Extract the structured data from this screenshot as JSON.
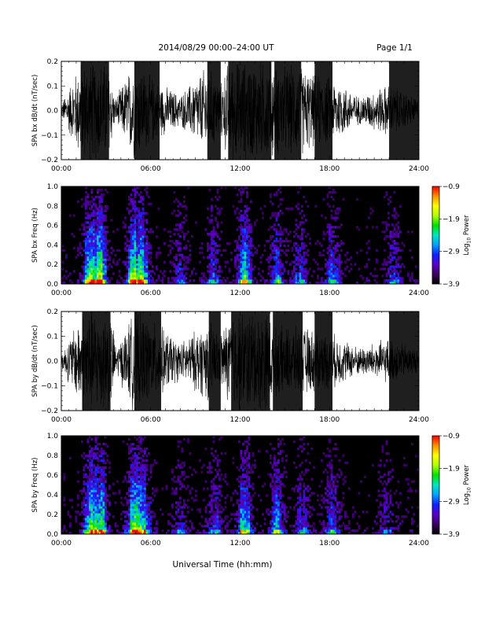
{
  "header": {
    "date_range": "2014/08/29  00:00–24:00 UT",
    "page": "Page 1/1"
  },
  "x_axis_title": "Universal Time (hh:mm)",
  "x_tick_labels": [
    "00:00",
    "06:00",
    "12:00",
    "18:00",
    "24:00"
  ],
  "chart_data": [
    {
      "type": "line",
      "panel": "bx-waveform",
      "ylabel": "SPA bx dB/dt (nT/sec)",
      "xlim": [
        0,
        24
      ],
      "ylim": [
        -0.2,
        0.2
      ],
      "yticks": [
        "0.2",
        "0.1",
        "0.0",
        "−0.1",
        "−0.2"
      ],
      "x_unit": "hours UT",
      "burst_windows": [
        [
          1.3,
          3.2
        ],
        [
          4.9,
          6.6
        ],
        [
          9.8,
          10.7
        ],
        [
          11.2,
          14.1
        ],
        [
          14.3,
          16.1
        ],
        [
          17.0,
          18.2
        ],
        [
          22.0,
          24.0
        ]
      ],
      "envelope": [
        [
          0,
          0.03
        ],
        [
          1.3,
          0.22
        ],
        [
          3.2,
          0.22
        ],
        [
          3.6,
          0.05
        ],
        [
          4.9,
          0.22
        ],
        [
          6.6,
          0.12
        ],
        [
          8.0,
          0.07
        ],
        [
          9.8,
          0.2
        ],
        [
          10.7,
          0.12
        ],
        [
          11.2,
          0.22
        ],
        [
          14.1,
          0.22
        ],
        [
          14.3,
          0.2
        ],
        [
          16.1,
          0.2
        ],
        [
          17.0,
          0.16
        ],
        [
          18.2,
          0.15
        ],
        [
          20.0,
          0.06
        ],
        [
          22.0,
          0.12
        ],
        [
          24.0,
          0.05
        ]
      ]
    },
    {
      "type": "heatmap",
      "panel": "bx-spectrogram",
      "ylabel": "SPA bx Freq (Hz)",
      "xlim": [
        0,
        24
      ],
      "ylim": [
        0,
        1.0
      ],
      "yticks": [
        "1.0",
        "0.8",
        "0.6",
        "0.4",
        "0.2",
        "0.0"
      ],
      "colorbar": {
        "label": "Log10 Power",
        "label_main": "Log",
        "label_sub": "10",
        "label_end": " Power",
        "ticks": [
          "−0.9",
          "−1.9",
          "−2.9",
          "−3.9"
        ],
        "range": [
          -3.9,
          -0.9
        ],
        "colors": [
          "#000000",
          "#3a0060",
          "#5a00c8",
          "#1020ff",
          "#00a0ff",
          "#00e8c0",
          "#00e000",
          "#b0ff00",
          "#ffff00",
          "#ff9000",
          "#ff0000"
        ]
      },
      "activity": [
        [
          2.0,
          0.95
        ],
        [
          2.6,
          0.85
        ],
        [
          4.9,
          0.9
        ],
        [
          5.5,
          0.6
        ],
        [
          8.0,
          0.3
        ],
        [
          10.2,
          0.45
        ],
        [
          12.3,
          0.7
        ],
        [
          14.5,
          0.5
        ],
        [
          16.0,
          0.35
        ],
        [
          18.2,
          0.5
        ],
        [
          22.3,
          0.35
        ]
      ]
    },
    {
      "type": "line",
      "panel": "by-waveform",
      "ylabel": "SPA by dB/dt (nT/sec)",
      "xlim": [
        0,
        24
      ],
      "ylim": [
        -0.2,
        0.2
      ],
      "yticks": [
        "0.2",
        "0.1",
        "0.0",
        "−0.1",
        "−0.2"
      ],
      "x_unit": "hours UT",
      "burst_windows": [
        [
          1.4,
          3.3
        ],
        [
          4.9,
          6.7
        ],
        [
          9.9,
          10.7
        ],
        [
          11.4,
          14.0
        ],
        [
          14.2,
          16.2
        ],
        [
          17.0,
          18.2
        ],
        [
          22.0,
          24.0
        ]
      ],
      "envelope": [
        [
          0,
          0.03
        ],
        [
          1.4,
          0.22
        ],
        [
          3.3,
          0.22
        ],
        [
          3.7,
          0.06
        ],
        [
          4.9,
          0.22
        ],
        [
          6.7,
          0.15
        ],
        [
          8.0,
          0.08
        ],
        [
          9.9,
          0.18
        ],
        [
          10.7,
          0.12
        ],
        [
          11.4,
          0.22
        ],
        [
          14.0,
          0.22
        ],
        [
          14.2,
          0.15
        ],
        [
          16.2,
          0.15
        ],
        [
          17.0,
          0.14
        ],
        [
          18.2,
          0.12
        ],
        [
          20.0,
          0.06
        ],
        [
          22.0,
          0.1
        ],
        [
          24.0,
          0.05
        ]
      ]
    },
    {
      "type": "heatmap",
      "panel": "by-spectrogram",
      "ylabel": "SPA by Freq (Hz)",
      "xlim": [
        0,
        24
      ],
      "ylim": [
        0,
        1.0
      ],
      "yticks": [
        "1.0",
        "0.8",
        "0.6",
        "0.4",
        "0.2",
        "0.0"
      ],
      "colorbar": {
        "label": "Log10 Power",
        "label_main": "Log",
        "label_sub": "10",
        "label_end": " Power",
        "ticks": [
          "−0.9",
          "−1.9",
          "−2.9",
          "−3.9"
        ],
        "range": [
          -3.9,
          -0.9
        ],
        "colors": [
          "#000000",
          "#3a0060",
          "#5a00c8",
          "#1020ff",
          "#00a0ff",
          "#00e8c0",
          "#00e000",
          "#b0ff00",
          "#ffff00",
          "#ff9000",
          "#ff0000"
        ]
      },
      "activity": [
        [
          2.0,
          0.95
        ],
        [
          2.6,
          0.85
        ],
        [
          4.9,
          0.9
        ],
        [
          5.6,
          0.6
        ],
        [
          8.0,
          0.3
        ],
        [
          10.3,
          0.4
        ],
        [
          12.3,
          0.75
        ],
        [
          14.5,
          0.55
        ],
        [
          16.2,
          0.4
        ],
        [
          18.2,
          0.45
        ],
        [
          21.8,
          0.3
        ]
      ]
    }
  ]
}
